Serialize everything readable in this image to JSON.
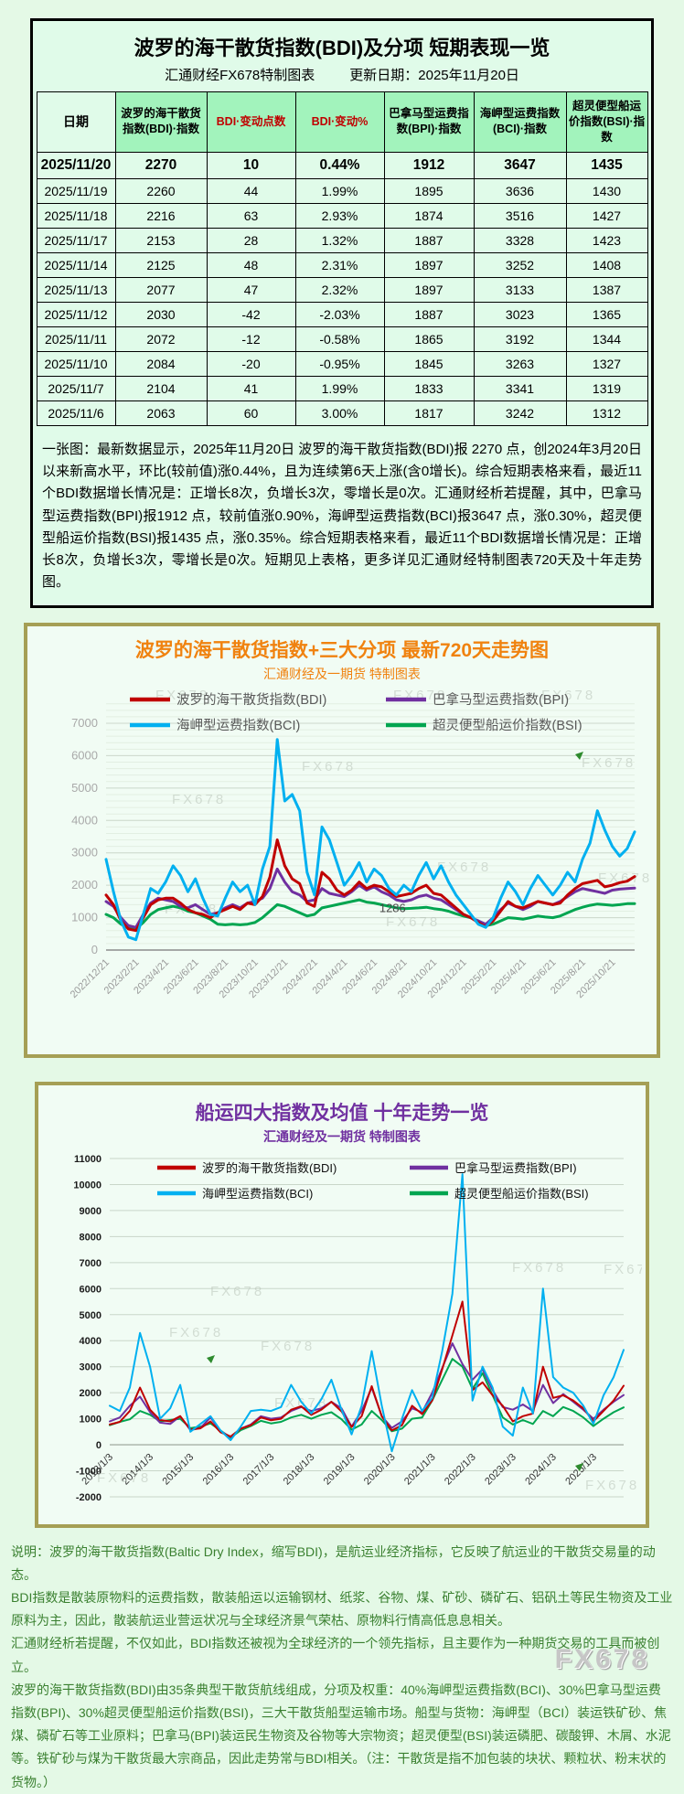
{
  "page": {
    "watermark": "FX678",
    "background": "#e4f9e6",
    "box_border": "#a59f55"
  },
  "table_section": {
    "title": "波罗的海干散货指数(BDI)及分项  短期表现一览",
    "source": "汇通财经FX678特制图表",
    "update_date": "更新日期：2025年11月20日",
    "headers": [
      "日期",
      "波罗的海干散货指数(BDI)·指数",
      "BDI·变动点数",
      "BDI·变动%",
      "巴拿马型运费指数(BPI)·指数",
      "海岬型运费指数(BCI)·指数",
      "超灵便型船运价指数(BSI)·指数"
    ],
    "red_header_cols": [
      2,
      3
    ],
    "latest_row_index": 0,
    "rows": [
      [
        "2025/11/20",
        "2270",
        "10",
        "0.44%",
        "1912",
        "3647",
        "1435"
      ],
      [
        "2025/11/19",
        "2260",
        "44",
        "1.99%",
        "1895",
        "3636",
        "1430"
      ],
      [
        "2025/11/18",
        "2216",
        "63",
        "2.93%",
        "1874",
        "3516",
        "1427"
      ],
      [
        "2025/11/17",
        "2153",
        "28",
        "1.32%",
        "1887",
        "3328",
        "1423"
      ],
      [
        "2025/11/14",
        "2125",
        "48",
        "2.31%",
        "1897",
        "3252",
        "1408"
      ],
      [
        "2025/11/13",
        "2077",
        "47",
        "2.32%",
        "1897",
        "3133",
        "1387"
      ],
      [
        "2025/11/12",
        "2030",
        "-42",
        "-2.03%",
        "1887",
        "3023",
        "1365"
      ],
      [
        "2025/11/11",
        "2072",
        "-12",
        "-0.58%",
        "1865",
        "3192",
        "1344"
      ],
      [
        "2025/11/10",
        "2084",
        "-20",
        "-0.95%",
        "1845",
        "3263",
        "1327"
      ],
      [
        "2025/11/7",
        "2104",
        "41",
        "1.99%",
        "1833",
        "3341",
        "1319"
      ],
      [
        "2025/11/6",
        "2063",
        "60",
        "3.00%",
        "1817",
        "3242",
        "1312"
      ]
    ],
    "note": "一张图：最新数据显示，2025年11月20日 波罗的海干散货指数(BDI)报 2270 点，创2024年3月20日以来新高水平，环比(较前值)涨0.44%，且为连续第6天上涨(含0增长)。综合短期表格来看，最近11个BDI数据增长情况是：正增长8次，负增长3次，零增长是0次。汇通财经析若提醒，其中，巴拿马型运费指数(BPI)报1912 点，较前值涨0.90%，海岬型运费指数(BCI)报3647 点，涨0.30%，超灵便型船运价指数(BSI)报1435 点，涨0.35%。综合短期表格来看，最近11个BDI数据增长情况是：正增长8次，负增长3次，零增长是0次。短期见上表格，更多详见汇通财经特制图表720天及十年走势图。"
  },
  "chart_data": [
    {
      "id": "chart720",
      "type": "line",
      "title": "波罗的海干散货指数+三大分项  最新720天走势图",
      "subtitle": "汇通财经及一期货  特制图表",
      "ylim": [
        0,
        7000
      ],
      "ytick_step": 1000,
      "grid": true,
      "legend_position": "top-inside",
      "xtick_idx_step": 4,
      "x_labels": [
        "2022/12/21",
        "2023/2/21",
        "2023/4/21",
        "2023/6/21",
        "2023/8/21",
        "2023/10/21",
        "2023/12/21",
        "2024/2/21",
        "2024/4/21",
        "2024/6/21",
        "2024/8/21",
        "2024/10/21",
        "2024/12/21",
        "2025/2/21",
        "2025/4/21",
        "2025/6/21",
        "2025/8/21",
        "2025/10/21"
      ],
      "series": [
        {
          "name": "波罗的海干散货指数(BDI)",
          "color": "#c00000",
          "values": [
            1700,
            1400,
            900,
            650,
            600,
            1000,
            1400,
            1550,
            1600,
            1600,
            1450,
            1250,
            1150,
            1100,
            1000,
            1150,
            1250,
            1350,
            1250,
            1450,
            1400,
            1650,
            2250,
            3400,
            2600,
            2200,
            2050,
            1450,
            1350,
            2400,
            2200,
            1850,
            1700,
            1850,
            2100,
            1900,
            2000,
            1950,
            1800,
            1650,
            1700,
            1750,
            1900,
            2000,
            1750,
            1700,
            1500,
            1300,
            1100,
            1000,
            850,
            720,
            900,
            1200,
            1500,
            1350,
            1300,
            1400,
            1500,
            1450,
            1400,
            1450,
            1700,
            1900,
            2050,
            2100,
            2150,
            1950,
            2000,
            2080,
            2125,
            2270
          ]
        },
        {
          "name": "巴拿马型运费指数(BPI)",
          "color": "#7030a0",
          "values": [
            1500,
            1350,
            1000,
            750,
            700,
            1100,
            1450,
            1600,
            1550,
            1500,
            1350,
            1300,
            1400,
            1250,
            1100,
            1150,
            1300,
            1400,
            1300,
            1450,
            1500,
            1600,
            1900,
            2500,
            2100,
            1800,
            1700,
            1500,
            1550,
            1900,
            1750,
            1700,
            1650,
            1800,
            2000,
            1850,
            1950,
            1800,
            1700,
            1550,
            1500,
            1550,
            1650,
            1700,
            1600,
            1550,
            1400,
            1250,
            1100,
            1000,
            900,
            800,
            1000,
            1250,
            1450,
            1350,
            1250,
            1350,
            1500,
            1450,
            1400,
            1500,
            1650,
            1800,
            1900,
            1850,
            1800,
            1750,
            1850,
            1880,
            1897,
            1912
          ]
        },
        {
          "name": "海岬型运费指数(BCI)",
          "color": "#00b0f0",
          "values": [
            2800,
            1800,
            900,
            400,
            320,
            1100,
            1900,
            1750,
            2100,
            2600,
            2300,
            1800,
            2200,
            1600,
            1100,
            1050,
            1600,
            2100,
            1800,
            2000,
            1400,
            2500,
            3200,
            6500,
            4600,
            4800,
            4300,
            2400,
            1700,
            3800,
            3400,
            2700,
            2000,
            2300,
            2700,
            2100,
            2500,
            2300,
            1900,
            1700,
            2000,
            1800,
            2300,
            2700,
            2200,
            2600,
            2100,
            1700,
            1400,
            1100,
            800,
            700,
            1000,
            1600,
            2100,
            1800,
            1400,
            1900,
            2300,
            2000,
            1700,
            2000,
            2400,
            2100,
            2800,
            3300,
            4300,
            3700,
            3200,
            2900,
            3133,
            3647
          ]
        },
        {
          "name": "超灵便型船运价指数(BSI)",
          "color": "#00a550",
          "values": [
            1100,
            1000,
            800,
            680,
            650,
            850,
            1100,
            1250,
            1300,
            1350,
            1300,
            1200,
            1150,
            1050,
            950,
            800,
            780,
            800,
            780,
            800,
            850,
            1000,
            1200,
            1400,
            1350,
            1250,
            1150,
            1050,
            1100,
            1300,
            1350,
            1400,
            1450,
            1500,
            1550,
            1480,
            1450,
            1400,
            1350,
            1300,
            1280,
            1286,
            1300,
            1320,
            1280,
            1250,
            1200,
            1120,
            1050,
            1000,
            900,
            750,
            800,
            900,
            1000,
            980,
            950,
            1000,
            1050,
            1020,
            1000,
            1050,
            1150,
            1250,
            1320,
            1380,
            1420,
            1400,
            1380,
            1400,
            1430,
            1435
          ]
        }
      ],
      "legend_grid": [
        [
          0,
          1
        ],
        [
          2,
          3
        ]
      ],
      "annotations": [
        {
          "text": "1286",
          "series": 3,
          "index": 41
        }
      ],
      "watermark": "FX678"
    },
    {
      "id": "chart10y",
      "type": "line",
      "title": "船运四大指数及均值 十年走势一览",
      "subtitle": "汇通财经及一期货 特制图表",
      "ylim": [
        -2000,
        11000
      ],
      "ytick_step": 1000,
      "grid": true,
      "legend_position": "top-inside",
      "xtick_idx_step": 4,
      "x_labels": [
        "2013/1/3",
        "2014/1/3",
        "2015/1/3",
        "2016/1/3",
        "2017/1/3",
        "2018/1/3",
        "2019/1/3",
        "2020/1/3",
        "2021/1/3",
        "2022/1/3",
        "2023/1/3",
        "2024/1/3",
        "2025/1/3"
      ],
      "series": [
        {
          "name": "波罗的海干散货指数(BDI)",
          "color": "#c00000",
          "values": [
            780,
            880,
            1300,
            2200,
            1350,
            950,
            900,
            1100,
            590,
            630,
            900,
            480,
            320,
            620,
            750,
            1050,
            940,
            1000,
            1350,
            1480,
            1150,
            1350,
            1650,
            1280,
            680,
            1100,
            2250,
            1090,
            550,
            750,
            1500,
            1180,
            1700,
            2900,
            4200,
            5500,
            2100,
            2400,
            1900,
            1500,
            900,
            1100,
            1200,
            3000,
            1800,
            1900,
            1700,
            1400,
            900,
            1300,
            1700,
            2270
          ]
        },
        {
          "name": "巴拿马型运费指数(BPI)",
          "color": "#7030a0",
          "values": [
            900,
            1050,
            1500,
            1850,
            1250,
            850,
            800,
            1100,
            560,
            650,
            1050,
            520,
            300,
            620,
            780,
            1100,
            1000,
            1050,
            1300,
            1450,
            1300,
            1400,
            1650,
            1400,
            700,
            1300,
            2200,
            1100,
            650,
            900,
            1400,
            1250,
            2000,
            2950,
            3900,
            3100,
            2500,
            2900,
            2100,
            1450,
            1350,
            1550,
            1300,
            2300,
            1600,
            1950,
            1650,
            1350,
            1000,
            1350,
            1650,
            1912
          ]
        },
        {
          "name": "海岬型运费指数(BCI)",
          "color": "#00b0f0",
          "values": [
            1500,
            1300,
            2200,
            4300,
            3000,
            1000,
            1400,
            2300,
            500,
            800,
            1100,
            550,
            180,
            700,
            1300,
            1350,
            1300,
            1450,
            2300,
            1650,
            1200,
            1750,
            2500,
            1350,
            400,
            1500,
            3600,
            1500,
            -250,
            1000,
            2100,
            1300,
            1800,
            3600,
            5800,
            10400,
            1700,
            3000,
            2200,
            700,
            350,
            2200,
            1200,
            6000,
            2600,
            2200,
            2000,
            1500,
            800,
            1900,
            2600,
            3647
          ]
        },
        {
          "name": "超灵便型船运价指数(BSI)",
          "color": "#00a550",
          "values": [
            750,
            880,
            980,
            1300,
            1150,
            900,
            950,
            1000,
            640,
            700,
            820,
            550,
            270,
            560,
            720,
            920,
            820,
            880,
            1050,
            1150,
            1000,
            1150,
            1250,
            980,
            580,
            780,
            1300,
            950,
            520,
            620,
            1000,
            1050,
            1700,
            2500,
            3300,
            3000,
            2150,
            2750,
            1900,
            1050,
            780,
            950,
            800,
            1300,
            1100,
            1450,
            1300,
            1050,
            720,
            1000,
            1250,
            1435
          ]
        }
      ],
      "legend_grid": [
        [
          0,
          1
        ],
        [
          2,
          3
        ]
      ],
      "annotations": [],
      "watermark": "FX678"
    }
  ],
  "footer": {
    "paragraphs": [
      "说明：波罗的海干散货指数(Baltic Dry Index，缩写BDI)，是航运业经济指标，它反映了航运业的干散货交易量的动态。",
      "BDI指数是散装原物料的运费指数，散装船运以运输钢材、纸浆、谷物、煤、矿砂、磷矿石、铝矾土等民生物资及工业原料为主，因此，散装航运业营运状况与全球经济景气荣枯、原物料行情高低息息相关。",
      "汇通财经析若提醒，不仅如此，BDI指数还被视为全球经济的一个领先指标，且主要作为一种期货交易的工具而被创立。",
      "波罗的海干散货指数(BDI)由35条典型干散货航线组成，分项及权重：40%海岬型运费指数(BCI)、30%巴拿马型运费指数(BPI)、30%超灵便型船运价指数(BSI)，三大干散货船型运输市场。船型与货物：海岬型（BCI）装运铁矿砂、焦煤、磷矿石等工业原料；巴拿马(BPI)装运民生物资及谷物等大宗物资；超灵便型(BSI)装运磷肥、碳酸钾、木屑、水泥等。铁矿砂与煤为干散货最大宗商品，因此走势常与BDI相关。（注：干散货是指不加包装的块状、颗粒状、粉末状的货物。）"
    ]
  }
}
